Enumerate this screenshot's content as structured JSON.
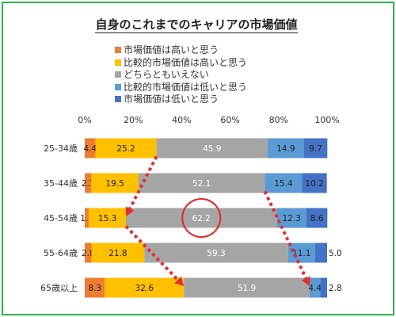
{
  "chart_data": {
    "type": "bar",
    "orientation": "horizontal",
    "stacked": "100%",
    "title": "自身のこれまでのキャリアの市場価値",
    "categories": [
      "25-34歳",
      "35-44歳",
      "45-54歳",
      "55-64歳",
      "65歳以上"
    ],
    "series": [
      {
        "name": "市場価値は高いと思う",
        "color": "#ed7d31",
        "values": [
          4.4,
          2.7,
          1.7,
          2.8,
          8.3
        ],
        "labels": [
          "4.4",
          "2.7",
          "1.7",
          "2.8",
          "8.3"
        ]
      },
      {
        "name": "比較的市場価値は高いと思う",
        "color": "#ffc000",
        "values": [
          25.2,
          19.5,
          15.3,
          21.8,
          32.6
        ],
        "labels": [
          "25.2",
          "19.5",
          "15.3",
          "21.8",
          "32.6"
        ]
      },
      {
        "name": "どちらともいえない",
        "color": "#a5a5a5",
        "values": [
          45.9,
          52.1,
          62.2,
          59.3,
          51.9
        ],
        "labels": [
          "45.9",
          "52.1",
          "62.2",
          "59.3",
          "51.9"
        ]
      },
      {
        "name": "比較的市場価値は低いと思う",
        "color": "#5b9bd5",
        "values": [
          14.9,
          15.4,
          12.3,
          11.1,
          4.4
        ],
        "labels": [
          "14.9",
          "15.4",
          "12.3",
          "11.1",
          "4.4"
        ]
      },
      {
        "name": "市場価値は低いと思う",
        "color": "#4472c4",
        "values": [
          9.7,
          10.2,
          8.6,
          5.0,
          2.8
        ],
        "labels": [
          "9.7",
          "10.2",
          "8.6",
          "5.0",
          "2.8"
        ]
      }
    ],
    "xlim": [
      0,
      100
    ],
    "xticks": [
      "0%",
      "20%",
      "40%",
      "60%",
      "80%",
      "100%"
    ],
    "legend_position": "top",
    "grid": false,
    "annotations": [
      {
        "type": "circle",
        "category": "45-54歳",
        "series": "どちらともいえない",
        "color": "#e03030"
      },
      {
        "type": "arrow",
        "style": "dotted",
        "color": "#e03030",
        "from": {
          "category": "25-34歳",
          "x": 29.6
        },
        "to": {
          "category": "45-54歳",
          "x": 17.0
        }
      },
      {
        "type": "arrow",
        "style": "dotted",
        "color": "#e03030",
        "from": {
          "category": "45-54歳",
          "x": 17.0
        },
        "to": {
          "category": "65歳以上",
          "x": 40.9
        }
      },
      {
        "type": "arrow",
        "style": "dotted",
        "color": "#e03030",
        "from": {
          "category": "35-44歳",
          "x": 74.3
        },
        "to": {
          "category": "65歳以上",
          "x": 92.8
        }
      }
    ]
  }
}
